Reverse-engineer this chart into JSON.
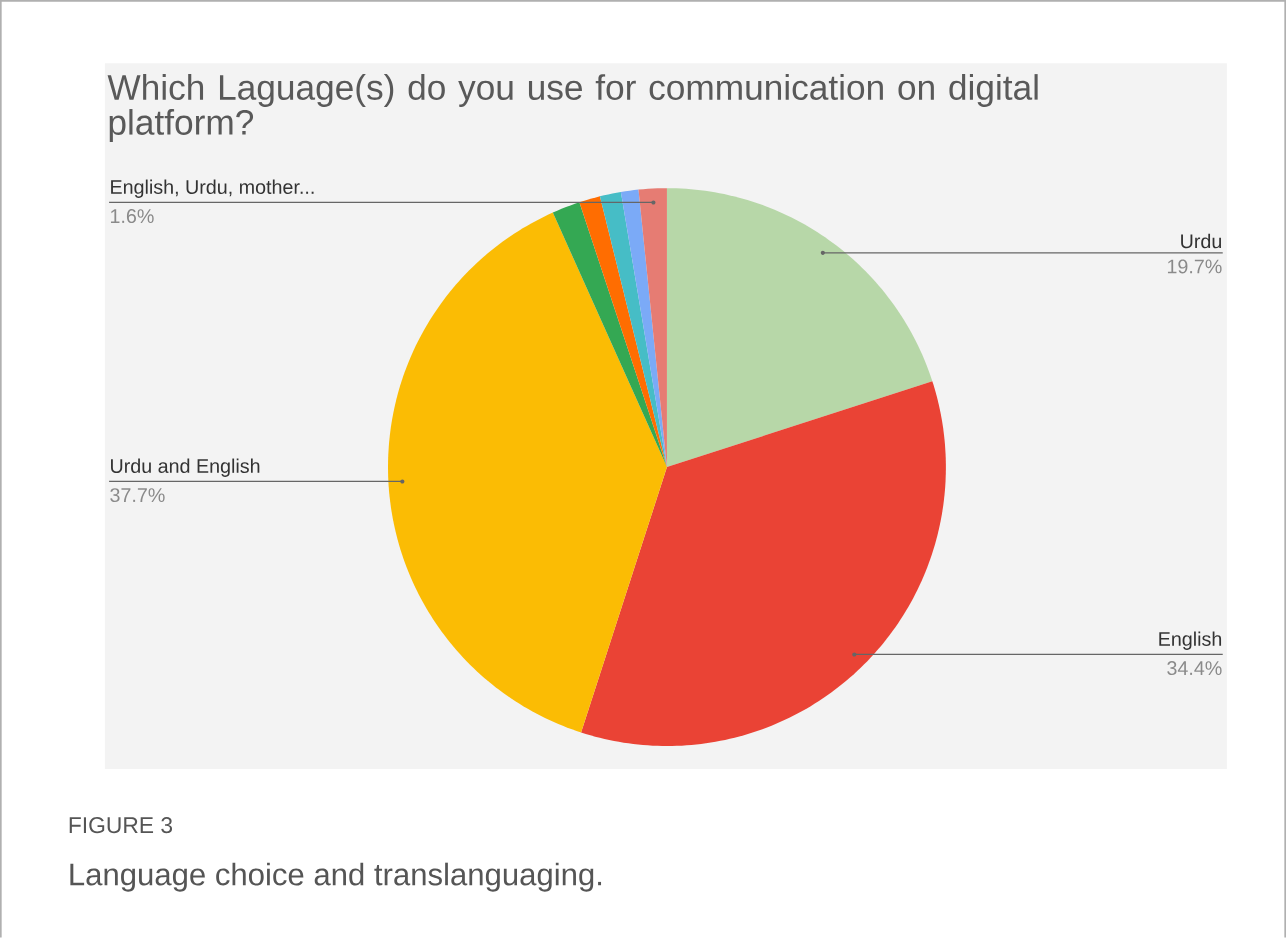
{
  "chart_data": {
    "type": "pie",
    "title": "Which Laguage(s) do you use for communication on digital platform?",
    "categories": [
      "Urdu",
      "English",
      "Urdu and English",
      null,
      null,
      null,
      null,
      "English, Urdu,  mother..."
    ],
    "values": [
      19.7,
      34.4,
      37.7,
      1.6,
      1.2,
      1.2,
      1.0,
      1.6
    ],
    "value_labels": [
      "19.7%",
      "34.4%",
      "37.7%",
      null,
      null,
      null,
      null,
      "1.6%"
    ],
    "colors": [
      "#b7d7a8",
      "#ea4335",
      "#fbbc04",
      "#34a853",
      "#ff6d01",
      "#46bdc6",
      "#7baaf7",
      "#e67c73"
    ],
    "annotations": [
      "FIGURE 3",
      "Language choice and translanguaging."
    ]
  }
}
